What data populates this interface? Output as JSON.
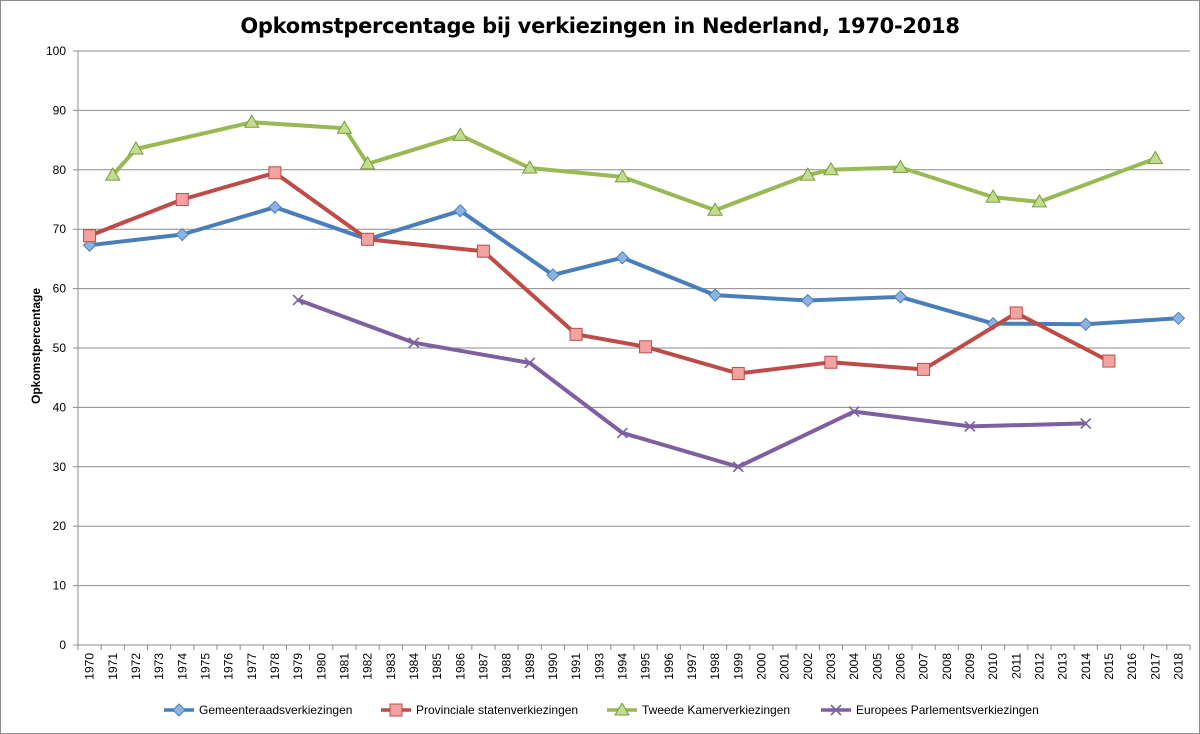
{
  "chart_data": {
    "type": "line",
    "title": "Opkomstpercentage bij verkiezingen in Nederland, 1970-2018",
    "xlabel": "",
    "ylabel": "Opkomstpercentage",
    "ylim": [
      0,
      100
    ],
    "yticks": [
      0,
      10,
      20,
      30,
      40,
      50,
      60,
      70,
      80,
      90,
      100
    ],
    "grid": true,
    "legend_position": "bottom",
    "categories": [
      "1970",
      "1971",
      "1972",
      "1973",
      "1974",
      "1975",
      "1976",
      "1977",
      "1978",
      "1979",
      "1980",
      "1981",
      "1982",
      "1983",
      "1984",
      "1985",
      "1986",
      "1987",
      "1988",
      "1989",
      "1990",
      "1991",
      "1993",
      "1994",
      "1995",
      "1996",
      "1997",
      "1998",
      "1999",
      "2000",
      "2001",
      "2002",
      "2003",
      "2004",
      "2005",
      "2006",
      "2007",
      "2008",
      "2009",
      "2010",
      "2011",
      "2012",
      "2013",
      "2014",
      "2015",
      "2016",
      "2017",
      "2018"
    ],
    "series": [
      {
        "name": "Gemeenteraadsverkiezingen",
        "color": "#4a7ebb",
        "marker": "diamond",
        "points": [
          [
            "1970",
            67.3
          ],
          [
            "1974",
            69.1
          ],
          [
            "1978",
            73.7
          ],
          [
            "1982",
            68.3
          ],
          [
            "1986",
            73.1
          ],
          [
            "1990",
            62.3
          ],
          [
            "1994",
            65.2
          ],
          [
            "1998",
            58.9
          ],
          [
            "2002",
            58.0
          ],
          [
            "2006",
            58.6
          ],
          [
            "2010",
            54.1
          ],
          [
            "2014",
            54.0
          ],
          [
            "2018",
            55.0
          ]
        ]
      },
      {
        "name": "Provinciale statenverkiezingen",
        "color": "#be4b48",
        "marker": "square",
        "points": [
          [
            "1970",
            68.9
          ],
          [
            "1974",
            75.0
          ],
          [
            "1978",
            79.5
          ],
          [
            "1982",
            68.3
          ],
          [
            "1987",
            66.3
          ],
          [
            "1991",
            52.3
          ],
          [
            "1995",
            50.2
          ],
          [
            "1999",
            45.7
          ],
          [
            "2003",
            47.6
          ],
          [
            "2007",
            46.4
          ],
          [
            "2011",
            55.9
          ],
          [
            "2015",
            47.8
          ]
        ]
      },
      {
        "name": "Tweede Kamerverkiezingen",
        "color": "#98b954",
        "marker": "triangle",
        "points": [
          [
            "1971",
            79.1
          ],
          [
            "1972",
            83.5
          ],
          [
            "1977",
            88.0
          ],
          [
            "1981",
            87.0
          ],
          [
            "1982",
            81.0
          ],
          [
            "1986",
            85.8
          ],
          [
            "1989",
            80.3
          ],
          [
            "1994",
            78.8
          ],
          [
            "1998",
            73.2
          ],
          [
            "2002",
            79.1
          ],
          [
            "2003",
            80.0
          ],
          [
            "2006",
            80.4
          ],
          [
            "2010",
            75.4
          ],
          [
            "2012",
            74.6
          ],
          [
            "2017",
            81.9
          ]
        ]
      },
      {
        "name": "Europees Parlementsverkiezingen",
        "color": "#7d60a0",
        "marker": "x",
        "points": [
          [
            "1979",
            58.1
          ],
          [
            "1984",
            50.9
          ],
          [
            "1989",
            47.5
          ],
          [
            "1994",
            35.7
          ],
          [
            "1999",
            30.0
          ],
          [
            "2004",
            39.3
          ],
          [
            "2009",
            36.8
          ],
          [
            "2014",
            37.3
          ]
        ]
      }
    ]
  }
}
